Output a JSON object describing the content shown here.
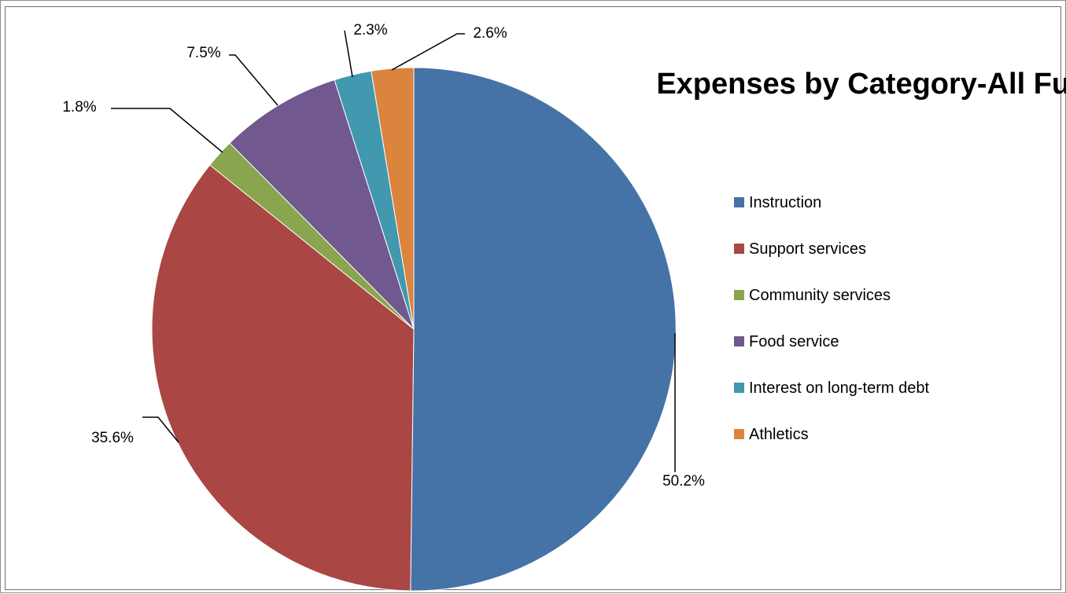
{
  "chart_data": {
    "type": "pie",
    "title": "Expenses by Category-All Funds",
    "legend_position": "right",
    "categories": [
      "Instruction",
      "Support services",
      "Community services",
      "Food service",
      "Interest on long-term debt",
      "Athletics"
    ],
    "values": [
      50.2,
      35.6,
      1.8,
      7.5,
      2.3,
      2.6
    ],
    "data_labels": [
      "50.2%",
      "35.6%",
      "1.8%",
      "7.5%",
      "2.3%",
      "2.6%"
    ],
    "colors": [
      "#4572a7",
      "#aa4643",
      "#89a54e",
      "#71588f",
      "#4198af",
      "#db843d"
    ]
  }
}
